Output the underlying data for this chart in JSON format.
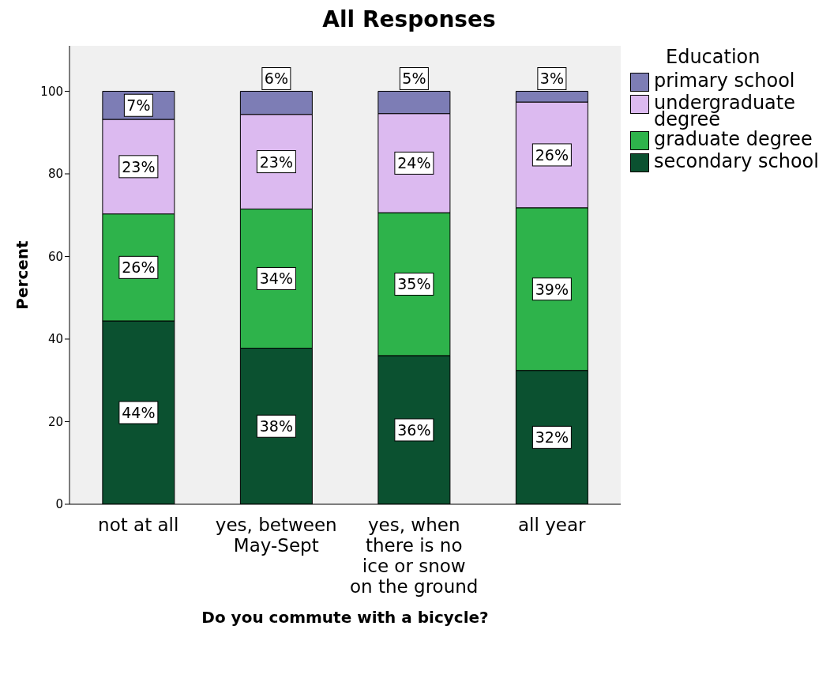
{
  "chart_data": {
    "type": "bar",
    "title": "All Responses",
    "xlabel": "Do you commute with a bicycle?",
    "ylabel": "Percent",
    "legend_title": "Education",
    "categories": [
      "not at all",
      "yes, between May-Sept",
      "yes, when there is no ice or snow on the ground",
      "all year"
    ],
    "stacked": true,
    "ylim": [
      0,
      111
    ],
    "yticks": [
      0,
      20,
      40,
      60,
      80,
      100
    ],
    "grid": false,
    "legend": "right",
    "series": [
      {
        "name": "secondary school",
        "color": "#0b5130",
        "values": [
          44.4,
          37.8,
          36.0,
          32.4
        ],
        "value_labels": [
          "44%",
          "38%",
          "36%",
          "32%"
        ]
      },
      {
        "name": "graduate degree",
        "color": "#2eb34b",
        "values": [
          25.9,
          33.7,
          34.6,
          39.4
        ],
        "value_labels": [
          "26%",
          "34%",
          "35%",
          "39%"
        ]
      },
      {
        "name": "undergraduate degree",
        "color": "#dcbaf0",
        "values": [
          22.9,
          22.9,
          24.0,
          25.6
        ],
        "value_labels": [
          "23%",
          "23%",
          "24%",
          "26%"
        ]
      },
      {
        "name": "primary school",
        "color": "#7d7db5",
        "values": [
          6.8,
          5.6,
          5.4,
          2.6
        ],
        "value_labels": [
          "7%",
          "6%",
          "5%",
          "3%"
        ]
      }
    ]
  }
}
